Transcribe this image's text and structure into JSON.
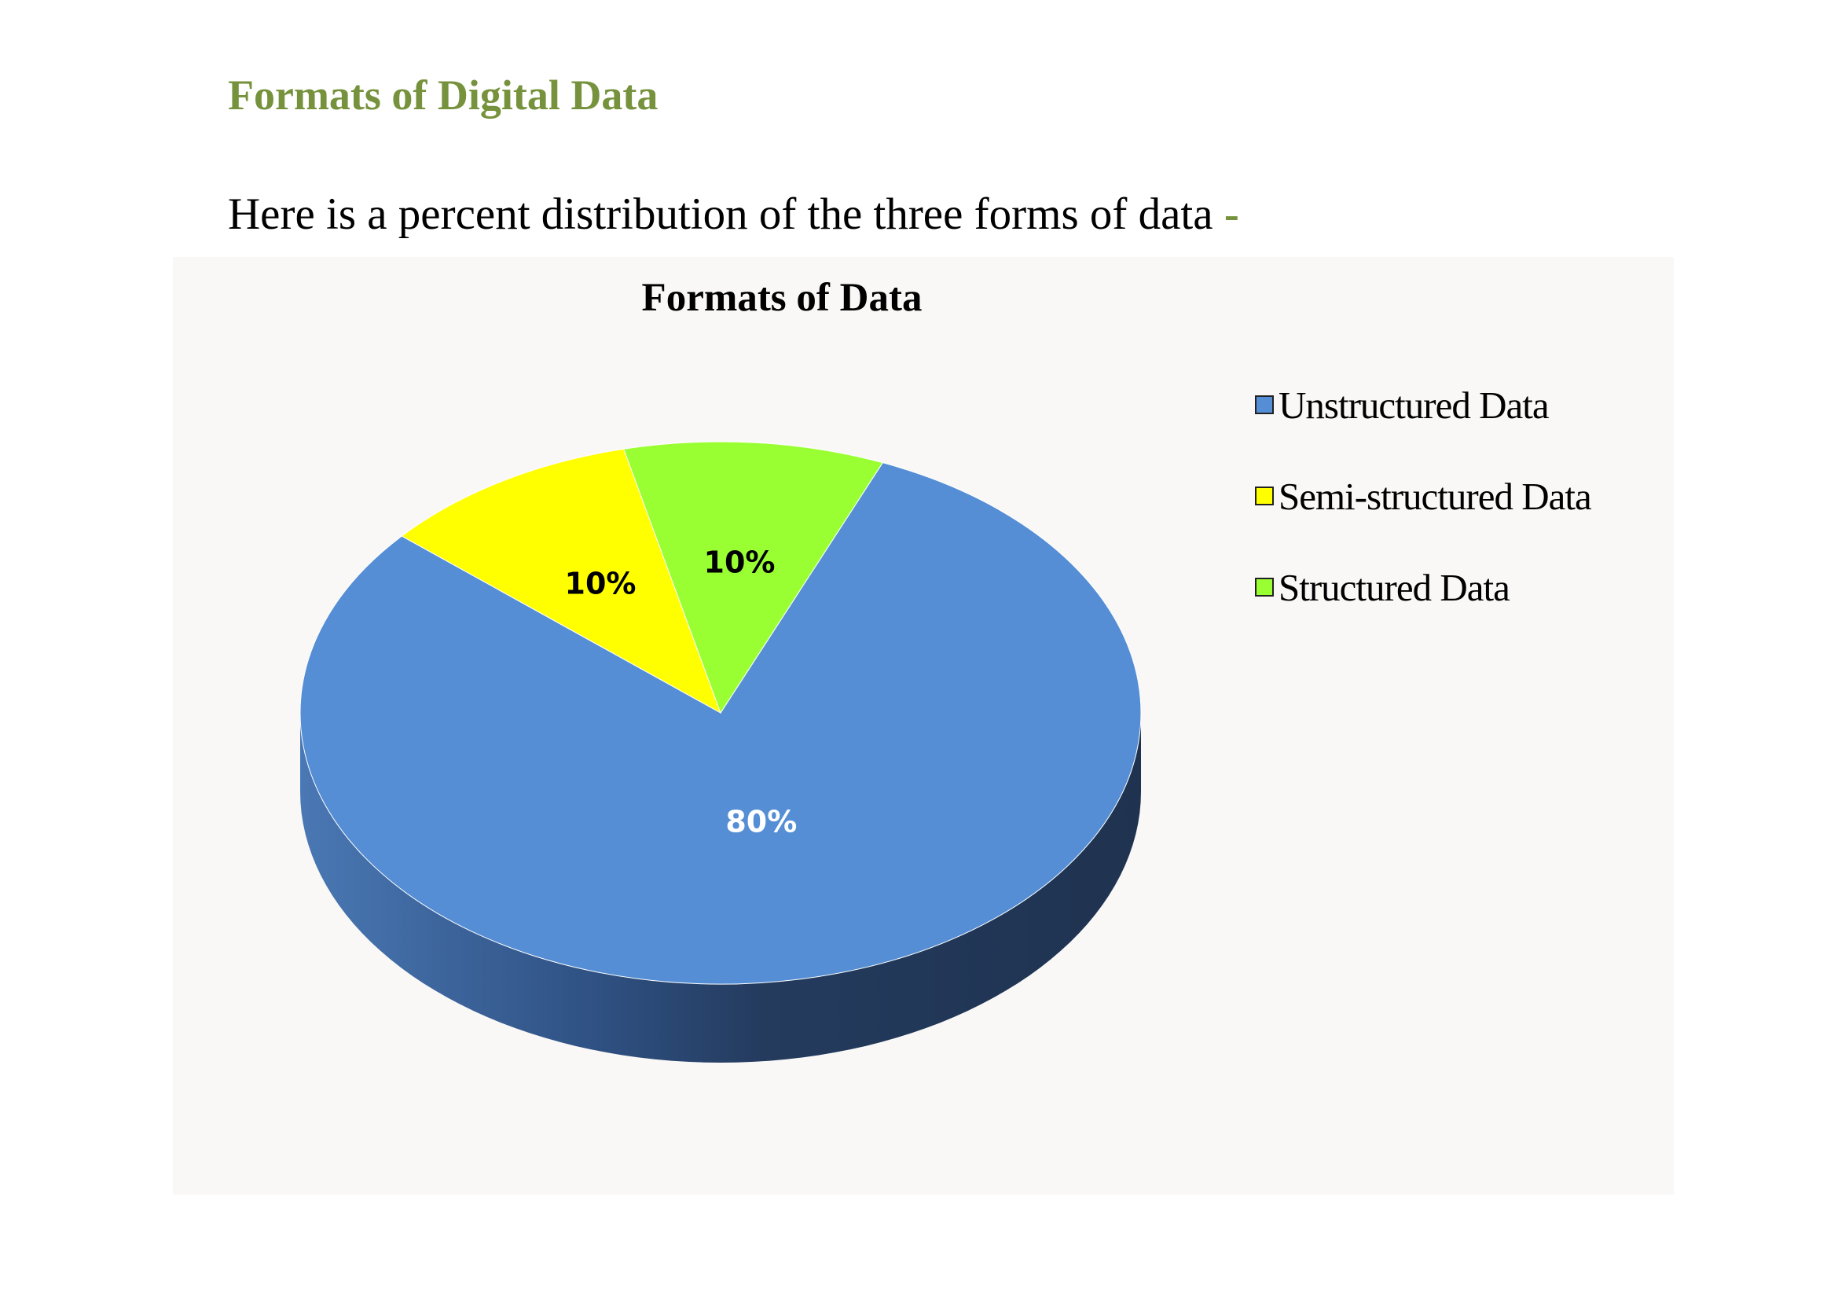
{
  "document": {
    "heading": "Formats of Digital Data",
    "intro": "Here is a percent distribution of the three forms of data",
    "intro_dash": "-"
  },
  "chart_data": {
    "type": "pie",
    "title": "Formats of Data",
    "categories": [
      "Unstructured Data",
      "Semi-structured Data",
      "Structured Data"
    ],
    "values": [
      80,
      10,
      10
    ],
    "labels": [
      "80%",
      "10%",
      "10%"
    ],
    "colors": [
      "#558ed5",
      "#ffff00",
      "#99ff33"
    ],
    "label_colors": [
      "#ffffff",
      "#000000",
      "#000000"
    ],
    "legend_position": "right",
    "style": "3d"
  }
}
